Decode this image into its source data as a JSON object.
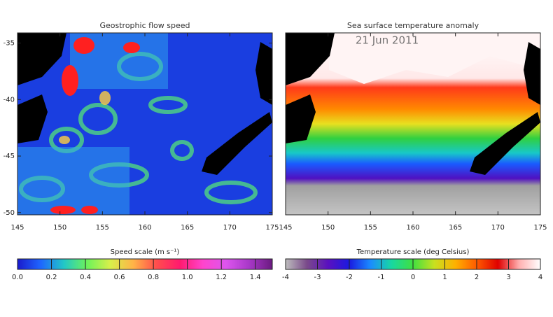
{
  "date": "21 Jun 2011",
  "panels": [
    {
      "title": "Geostrophic flow speed",
      "xlim": [
        145,
        175
      ],
      "ylim": [
        -50.2,
        -34.1
      ],
      "xticks": [
        145,
        150,
        155,
        160,
        165,
        170,
        175
      ],
      "yticks": [
        -35,
        -40,
        -45,
        -50
      ]
    },
    {
      "title": "Sea surface temperature anomaly",
      "xlim": [
        145,
        175
      ],
      "ylim": [
        -50.2,
        -34.1
      ],
      "xticks": [
        145,
        150,
        155,
        160,
        165,
        170,
        175
      ],
      "yticks": []
    }
  ],
  "colorbars": [
    {
      "label": "Speed scale (m s⁻¹)",
      "lim": [
        0,
        1.5
      ],
      "ticks": [
        {
          "value": 0,
          "label": "0.0"
        },
        0.2,
        0.4,
        0.6,
        0.8,
        {
          "value": 1,
          "label": "1.0"
        },
        1.2,
        1.4
      ],
      "colors": [
        "#1a1acc",
        "#1e66ff",
        "#22c7c7",
        "#6cf25a",
        "#d8f04a",
        "#ffb347",
        "#ff4d4d",
        "#ff1a6e",
        "#ff44cc",
        "#dd55ee",
        "#a838c8",
        "#6a1a80"
      ]
    },
    {
      "label": "Temperature scale (deg Celsius)",
      "lim": [
        -4,
        4
      ],
      "ticks": [
        -4,
        -3,
        -2,
        -1,
        0,
        1,
        2,
        3,
        4
      ],
      "colors": [
        "#bdbdbd",
        "#7a4a8a",
        "#5a10c0",
        "#1a1ae0",
        "#1a8cff",
        "#18d8a0",
        "#40e040",
        "#c8e020",
        "#ffb000",
        "#ff5a00",
        "#e00000",
        "#ffb0b0",
        "#ffffff"
      ]
    }
  ]
}
